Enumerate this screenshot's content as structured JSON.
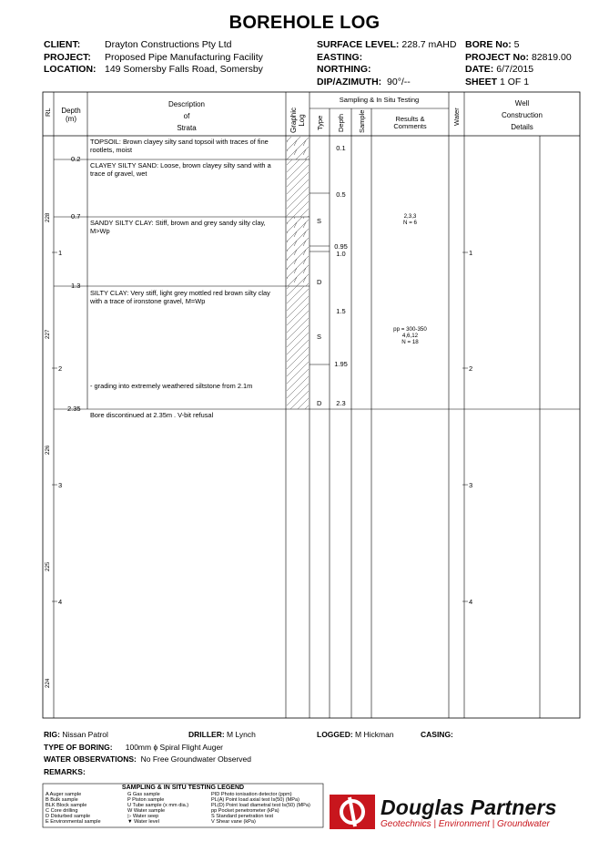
{
  "title": "BOREHOLE LOG",
  "header": {
    "client_label": "CLIENT:",
    "client": "Drayton Constructions Pty Ltd",
    "project_label": "PROJECT:",
    "project": "Proposed Pipe Manufacturing Facility",
    "location_label": "LOCATION:",
    "location": "149 Somersby Falls Road, Somersby",
    "surface_level_label": "SURFACE LEVEL:",
    "surface_level": "228.7 mAHD",
    "easting_label": "EASTING:",
    "northing_label": "NORTHING:",
    "dip_label": "DIP/AZIMUTH:",
    "dip": "90°/--",
    "bore_label": "BORE No:",
    "bore": "5",
    "project_no_label": "PROJECT No:",
    "project_no": "82819.00",
    "date_label": "DATE:",
    "date": "6/7/2015",
    "sheet_label": "SHEET",
    "sheet": "1  OF  1"
  },
  "columns": {
    "rl": "RL",
    "depth": "Depth",
    "depth_unit": "(m)",
    "desc1": "Description",
    "desc2": "of",
    "desc3": "Strata",
    "graphic": "Graphic",
    "graphic2": "Log",
    "sampling": "Sampling & In Situ Testing",
    "type": "Type",
    "sdepth": "Depth",
    "sample": "Sample",
    "results1": "Results &",
    "results2": "Comments",
    "water": "Water",
    "well1": "Well",
    "well2": "Construction",
    "well3": "Details"
  },
  "strata": [
    {
      "depth": "",
      "text": "TOPSOIL: Brown clayey silty sand topsoil with traces of fine rootlets, moist"
    },
    {
      "depth": "0.2",
      "text": "CLAYEY SILTY SAND: Loose, brown clayey silty sand with a trace of gravel, wet"
    },
    {
      "depth": "0.7",
      "text": "SANDY SILTY CLAY: Stiff, brown and grey sandy silty clay, M>Wp"
    },
    {
      "depth": "1.3",
      "text": "SILTY CLAY: Very stiff, light grey mottled red brown silty clay with a trace of ironstone gravel, M=Wp"
    },
    {
      "depth": "",
      "text": "- grading into extremely weathered siltstone from 2.1m"
    },
    {
      "depth": "2.35",
      "text": "Bore discontinued at 2.35m .  V-bit refusal"
    }
  ],
  "samples": [
    {
      "type": "",
      "depth": "0.1"
    },
    {
      "type": "",
      "depth": "0.5"
    },
    {
      "type": "S",
      "depth": ""
    },
    {
      "type": "",
      "depth": "0.95"
    },
    {
      "type": "",
      "depth": "1.0"
    },
    {
      "type": "D",
      "depth": ""
    },
    {
      "type": "",
      "depth": "1.5"
    },
    {
      "type": "S",
      "depth": ""
    },
    {
      "type": "",
      "depth": "1.95"
    },
    {
      "type": "D",
      "depth": "2.3"
    }
  ],
  "results": [
    {
      "lines": [
        "2,3,3",
        "N = 6"
      ]
    },
    {
      "lines": [
        "pp = 300-350",
        "4,6,12",
        "N = 18"
      ]
    }
  ],
  "depth_ticks": [
    "1",
    "2",
    "3",
    "4"
  ],
  "rl_ticks": [
    "228",
    "227",
    "226",
    "225",
    "224"
  ],
  "footer": {
    "rig_label": "RIG:",
    "rig": "Nissan Patrol",
    "driller_label": "DRILLER:",
    "driller": "M Lynch",
    "logged_label": "LOGGED:",
    "logged": "M Hickman",
    "casing_label": "CASING:",
    "boring_label": "TYPE OF BORING:",
    "boring": "100mm ϕ Spiral Flight Auger",
    "water_label": "WATER OBSERVATIONS:",
    "water": "No Free Groundwater Observed",
    "remarks_label": "REMARKS:"
  },
  "legend": {
    "title": "SAMPLING & IN SITU TESTING LEGEND",
    "col1": [
      "A    Auger sample",
      "B    Bulk sample",
      "BLK Block sample",
      "C    Core drilling",
      "D    Disturbed sample",
      "E    Environmental sample"
    ],
    "col2": [
      "G    Gas sample",
      "P    Piston sample",
      "U    Tube sample (x mm dia.)",
      "W    Water sample",
      "▷    Water seep",
      "▼    Water level"
    ],
    "col3": [
      "PID   Photo ionisation detector (ppm)",
      "PL(A) Point load axial test Is(50) (MPa)",
      "PL(D) Point load diametral test Is(50) (MPa)",
      "pp     Pocket penetrometer (kPa)",
      "S       Standard penetration test",
      "V       Shear vane (kPa)"
    ]
  },
  "logo": {
    "name": "Douglas Partners",
    "tagline": "Geotechnics  |  Environment  |  Groundwater"
  }
}
